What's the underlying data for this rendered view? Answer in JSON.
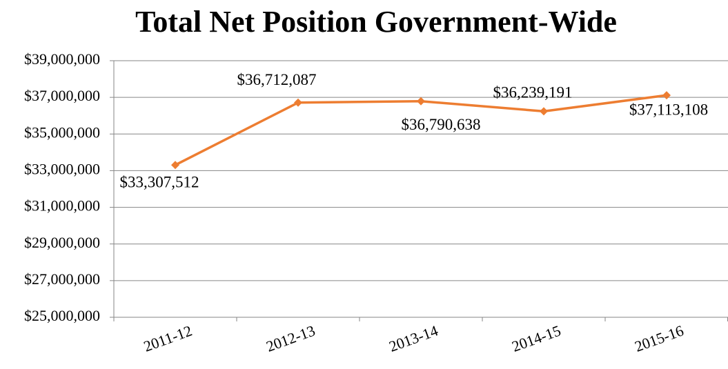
{
  "chart_data": {
    "type": "line",
    "title": "Total Net Position Government-Wide",
    "categories": [
      "2011-12",
      "2012-13",
      "2013-14",
      "2014-15",
      "2015-16"
    ],
    "series": [
      {
        "name": "Total Net Position",
        "color": "#ed7d31",
        "values": [
          33307512,
          36712087,
          36790638,
          36239191,
          37113108
        ],
        "value_labels": [
          "$33,307,512",
          "$36,712,087",
          "$36,790,638",
          "$36,239,191",
          "$37,113,108"
        ]
      }
    ],
    "ylim": [
      25000000,
      39000000
    ],
    "yticks": [
      {
        "value": 25000000,
        "label": "$25,000,000"
      },
      {
        "value": 27000000,
        "label": "$27,000,000"
      },
      {
        "value": 29000000,
        "label": "$29,000,000"
      },
      {
        "value": 31000000,
        "label": "$31,000,000"
      },
      {
        "value": 33000000,
        "label": "$33,000,000"
      },
      {
        "value": 35000000,
        "label": "$35,000,000"
      },
      {
        "value": 37000000,
        "label": "$37,000,000"
      },
      {
        "value": 39000000,
        "label": "$39,000,000"
      }
    ],
    "grid": true
  }
}
